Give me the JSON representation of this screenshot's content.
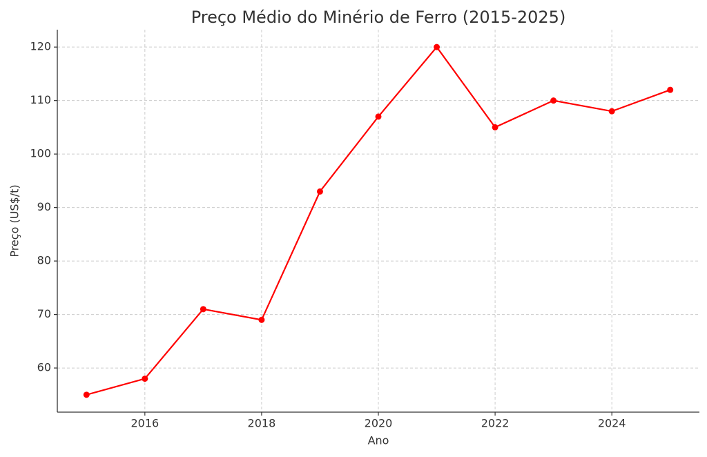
{
  "chart_data": {
    "type": "line",
    "title": "Preço Médio do Minério de Ferro (2015-2025)",
    "x_label": "Ano",
    "y_label": "Preço (US$/t)",
    "x": [
      2015,
      2016,
      2017,
      2018,
      2019,
      2020,
      2021,
      2022,
      2023,
      2024,
      2025
    ],
    "series": [
      {
        "name": "Preço",
        "color": "#ff0000",
        "values": [
          55,
          58,
          71,
          69,
          93,
          107,
          120,
          105,
          110,
          108,
          112
        ]
      }
    ],
    "xlim": [
      2014.5,
      2025.5
    ],
    "xticks": [
      2016,
      2018,
      2020,
      2022,
      2024
    ],
    "ylim": [
      51.75,
      123.25
    ],
    "yticks": [
      60,
      70,
      80,
      90,
      100,
      110,
      120
    ],
    "grid": true
  }
}
